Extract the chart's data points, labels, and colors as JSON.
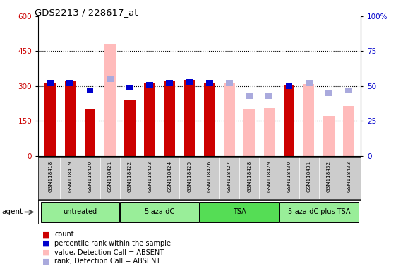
{
  "title": "GDS2213 / 228617_at",
  "samples": [
    "GSM118418",
    "GSM118419",
    "GSM118420",
    "GSM118421",
    "GSM118422",
    "GSM118423",
    "GSM118424",
    "GSM118425",
    "GSM118426",
    "GSM118427",
    "GSM118428",
    "GSM118429",
    "GSM118430",
    "GSM118431",
    "GSM118432",
    "GSM118433"
  ],
  "count_present": [
    315,
    320,
    200,
    null,
    240,
    315,
    320,
    325,
    315,
    null,
    null,
    null,
    305,
    null,
    null,
    null
  ],
  "count_absent": [
    null,
    null,
    null,
    480,
    null,
    null,
    null,
    null,
    null,
    315,
    200,
    205,
    null,
    310,
    170,
    215
  ],
  "rank_present": [
    52,
    52,
    47,
    null,
    49,
    51,
    52,
    53,
    52,
    null,
    null,
    null,
    50,
    null,
    null,
    null
  ],
  "rank_absent": [
    null,
    null,
    null,
    55,
    null,
    null,
    null,
    null,
    null,
    52,
    43,
    43,
    null,
    52,
    45,
    47
  ],
  "ylim_left": [
    0,
    600
  ],
  "ylim_right": [
    0,
    100
  ],
  "yticks_left": [
    0,
    150,
    300,
    450,
    600
  ],
  "yticks_right": [
    0,
    25,
    50,
    75,
    100
  ],
  "group_defs": [
    {
      "label": "untreated",
      "start": 0,
      "end": 3,
      "color": "#99ee99"
    },
    {
      "label": "5-aza-dC",
      "start": 4,
      "end": 7,
      "color": "#99ee99"
    },
    {
      "label": "TSA",
      "start": 8,
      "end": 11,
      "color": "#55dd55"
    },
    {
      "label": "5-aza-dC plus TSA",
      "start": 12,
      "end": 15,
      "color": "#99ee99"
    }
  ],
  "bar_width": 0.55,
  "count_present_color": "#cc0000",
  "count_absent_color": "#ffbbbb",
  "rank_present_color": "#0000cc",
  "rank_absent_color": "#aaaadd",
  "bg_color": "#ffffff",
  "label_area_color": "#cccccc",
  "ytick_left_color": "#cc0000",
  "ytick_right_color": "#0000cc"
}
